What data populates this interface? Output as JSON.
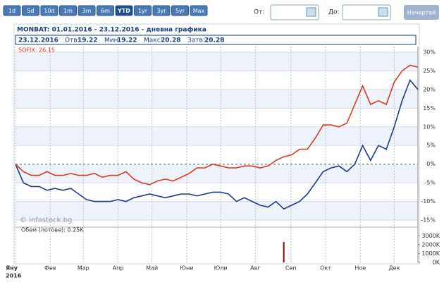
{
  "toolbar": {
    "range_buttons": [
      "1d",
      "5d",
      "10d",
      "1m",
      "3m",
      "6m",
      "YTD",
      "1yr",
      "3yr",
      "5yr",
      "Max"
    ],
    "active_button": "YTD",
    "from_label": "От:",
    "to_label": "До:",
    "draw_button": "Начертай"
  },
  "chart_data": {
    "type": "line",
    "title": "MONBAT: 01.01.2016 - 23.12.2016 - дневна графика",
    "info": {
      "date": "23.12.2016",
      "open_label": "Отв:",
      "open": 19.22,
      "low_label": "Мин:",
      "low": 19.22,
      "high_label": "Макс:",
      "high": 20.28,
      "close_label": "Затв:",
      "close": 20.28
    },
    "legend_label": "SOFIX: 26.15",
    "watermark": "© infostock.bg",
    "xlim": [
      0,
      51
    ],
    "xticks": [
      {
        "value": 0,
        "label": "Яну"
      },
      {
        "value": 4.4,
        "label": "Фев"
      },
      {
        "value": 8.6,
        "label": "Мар"
      },
      {
        "value": 13,
        "label": "Апр"
      },
      {
        "value": 17.3,
        "label": "Май"
      },
      {
        "value": 21.7,
        "label": "Юни"
      },
      {
        "value": 26,
        "label": "Юли"
      },
      {
        "value": 30.4,
        "label": "Авг"
      },
      {
        "value": 34.9,
        "label": "Сеп"
      },
      {
        "value": 39.3,
        "label": "Окт"
      },
      {
        "value": 43.7,
        "label": "Ное"
      },
      {
        "value": 48,
        "label": "Дек"
      }
    ],
    "x_year_label": "2016",
    "ylim": [
      -16.5,
      31.5
    ],
    "yticks": [
      {
        "value": 30,
        "label": "30%"
      },
      {
        "value": 25,
        "label": "25%"
      },
      {
        "value": 20,
        "label": "20%"
      },
      {
        "value": 15,
        "label": "15%"
      },
      {
        "value": 10,
        "label": "10%"
      },
      {
        "value": 5,
        "label": "5%"
      },
      {
        "value": 0,
        "label": "0%"
      },
      {
        "value": -5,
        "label": "-5%"
      },
      {
        "value": -10,
        "label": "-10%"
      },
      {
        "value": -15,
        "label": "-15%"
      }
    ],
    "series": [
      {
        "color": "#1f3a8a",
        "values": [
          0,
          -5,
          -6,
          -6,
          -7,
          -6.5,
          -7,
          -6.5,
          -8,
          -9.5,
          -10,
          -10,
          -10,
          -9.5,
          -10,
          -9,
          -8.5,
          -8,
          -8.5,
          -9,
          -8.5,
          -8,
          -8,
          -8.5,
          -8,
          -7.5,
          -7.5,
          -8,
          -10,
          -9,
          -10,
          -11,
          -11.5,
          -10,
          -12,
          -11,
          -10,
          -8,
          -5,
          -2,
          -1,
          -0.5,
          -2,
          0,
          5,
          1,
          5,
          4,
          10,
          17,
          22.5,
          20
        ]
      },
      {
        "color": "#d83a1e",
        "values": [
          0,
          -2,
          -3,
          -3,
          -2,
          -3,
          -3,
          -2.5,
          -3,
          -3,
          -2.5,
          -3.5,
          -3,
          -3,
          -2,
          -4,
          -5,
          -5.5,
          -4.5,
          -4,
          -4.5,
          -3.5,
          -2.5,
          -1,
          -1,
          0,
          -0.5,
          -1,
          -1,
          -0.5,
          -0.5,
          -1,
          -0.5,
          1,
          2,
          2.5,
          4,
          4,
          7,
          10.5,
          10.5,
          10,
          11,
          16,
          21,
          16,
          17,
          16,
          22,
          25,
          26.5,
          26
        ]
      }
    ],
    "volume": {
      "label": "Обем (лотове): 0.25K",
      "color": "#8b0000",
      "ylim": [
        0,
        3500
      ],
      "yticks": [
        {
          "value": 3000,
          "label": "3000K"
        },
        {
          "value": 2000,
          "label": "2000K"
        },
        {
          "value": 1000,
          "label": "1000K"
        },
        {
          "value": 0,
          "label": "0K"
        }
      ],
      "values": [
        0,
        0,
        0,
        0,
        0,
        0,
        0,
        0,
        0,
        0,
        0,
        0,
        0,
        0,
        0,
        0,
        0,
        0,
        0,
        0,
        0,
        0,
        0,
        0,
        0,
        0,
        0,
        0,
        0,
        0,
        0,
        0,
        0,
        0,
        2300,
        0,
        0,
        0,
        0,
        0,
        0,
        0,
        0,
        0,
        0,
        0,
        0,
        0,
        0,
        0,
        0,
        0
      ]
    }
  }
}
